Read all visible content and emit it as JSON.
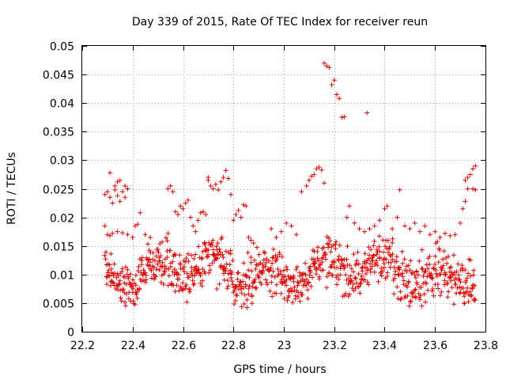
{
  "chart_data": {
    "type": "scatter",
    "title": "Day 339 of 2015, Rate Of TEC Index for receiver reun",
    "xlabel": "GPS time / hours",
    "ylabel": "ROTI / TECUs",
    "xlim": [
      22.2,
      23.8
    ],
    "ylim": [
      0,
      0.05
    ],
    "xticks": [
      "22.2",
      "22.4",
      "22.6",
      "22.8",
      "23",
      "23.2",
      "23.4",
      "23.6",
      "23.8"
    ],
    "yticks": [
      "0",
      "0.005",
      "0.01",
      "0.015",
      "0.02",
      "0.025",
      "0.03",
      "0.035",
      "0.04",
      "0.045",
      "0.05"
    ],
    "grid": true,
    "marker": "+",
    "color": "#e00000",
    "series": [
      {
        "name": "ROTI",
        "points": [
          [
            22.29,
            0.0185
          ],
          [
            22.29,
            0.024
          ],
          [
            22.3,
            0.0245
          ],
          [
            22.31,
            0.0235
          ],
          [
            22.31,
            0.0278
          ],
          [
            22.32,
            0.0225
          ],
          [
            22.33,
            0.0248
          ],
          [
            22.33,
            0.0255
          ],
          [
            22.34,
            0.0262
          ],
          [
            22.34,
            0.0238
          ],
          [
            22.35,
            0.0265
          ],
          [
            22.35,
            0.0228
          ],
          [
            22.36,
            0.0245
          ],
          [
            22.37,
            0.0255
          ],
          [
            22.37,
            0.0235
          ],
          [
            22.38,
            0.025
          ],
          [
            22.3,
            0.017
          ],
          [
            22.31,
            0.0168
          ],
          [
            22.32,
            0.0172
          ],
          [
            22.34,
            0.0175
          ],
          [
            22.36,
            0.0173
          ],
          [
            22.38,
            0.017
          ],
          [
            22.4,
            0.0165
          ],
          [
            22.41,
            0.0185
          ],
          [
            22.42,
            0.0188
          ],
          [
            22.43,
            0.0208
          ],
          [
            22.45,
            0.017
          ],
          [
            22.47,
            0.0165
          ],
          [
            22.54,
            0.025
          ],
          [
            22.55,
            0.0255
          ],
          [
            22.56,
            0.0245
          ],
          [
            22.57,
            0.021
          ],
          [
            22.58,
            0.0205
          ],
          [
            22.59,
            0.022
          ],
          [
            22.6,
            0.0215
          ],
          [
            22.61,
            0.0225
          ],
          [
            22.62,
            0.023
          ],
          [
            22.63,
            0.02
          ],
          [
            22.64,
            0.0185
          ],
          [
            22.65,
            0.0175
          ],
          [
            22.66,
            0.0195
          ],
          [
            22.67,
            0.0208
          ],
          [
            22.68,
            0.021
          ],
          [
            22.69,
            0.0205
          ],
          [
            22.7,
            0.0265
          ],
          [
            22.7,
            0.027
          ],
          [
            22.71,
            0.0255
          ],
          [
            22.72,
            0.025
          ],
          [
            22.73,
            0.0258
          ],
          [
            22.74,
            0.0248
          ],
          [
            22.75,
            0.0262
          ],
          [
            22.76,
            0.027
          ],
          [
            22.77,
            0.0282
          ],
          [
            22.78,
            0.0268
          ],
          [
            22.79,
            0.024
          ],
          [
            22.8,
            0.0195
          ],
          [
            22.81,
            0.0205
          ],
          [
            22.82,
            0.0212
          ],
          [
            22.83,
            0.02
          ],
          [
            22.84,
            0.0222
          ],
          [
            22.85,
            0.022
          ],
          [
            22.86,
            0.0165
          ],
          [
            22.87,
            0.016
          ],
          [
            22.88,
            0.0155
          ],
          [
            22.95,
            0.018
          ],
          [
            22.97,
            0.0165
          ],
          [
            22.99,
            0.0175
          ],
          [
            23.01,
            0.019
          ],
          [
            23.03,
            0.0185
          ],
          [
            23.05,
            0.017
          ],
          [
            23.07,
            0.0245
          ],
          [
            23.09,
            0.0255
          ],
          [
            23.1,
            0.0265
          ],
          [
            23.11,
            0.0272
          ],
          [
            23.12,
            0.0275
          ],
          [
            23.13,
            0.0285
          ],
          [
            23.14,
            0.0288
          ],
          [
            23.15,
            0.0283
          ],
          [
            23.16,
            0.026
          ],
          [
            23.16,
            0.047
          ],
          [
            23.17,
            0.0465
          ],
          [
            23.18,
            0.0462
          ],
          [
            23.19,
            0.0432
          ],
          [
            23.2,
            0.044
          ],
          [
            23.21,
            0.0415
          ],
          [
            23.22,
            0.0408
          ],
          [
            23.23,
            0.0375
          ],
          [
            23.24,
            0.0376
          ],
          [
            23.33,
            0.0383
          ],
          [
            23.25,
            0.02
          ],
          [
            23.26,
            0.022
          ],
          [
            23.28,
            0.019
          ],
          [
            23.3,
            0.018
          ],
          [
            23.32,
            0.0175
          ],
          [
            23.34,
            0.018
          ],
          [
            23.36,
            0.0185
          ],
          [
            23.38,
            0.0195
          ],
          [
            23.4,
            0.0215
          ],
          [
            23.41,
            0.022
          ],
          [
            23.43,
            0.018
          ],
          [
            23.45,
            0.02
          ],
          [
            23.46,
            0.0248
          ],
          [
            23.48,
            0.0185
          ],
          [
            23.5,
            0.018
          ],
          [
            23.52,
            0.019
          ],
          [
            23.54,
            0.0175
          ],
          [
            23.56,
            0.0185
          ],
          [
            23.58,
            0.017
          ],
          [
            23.6,
            0.0175
          ],
          [
            23.62,
            0.0165
          ],
          [
            23.64,
            0.0172
          ],
          [
            23.66,
            0.0168
          ],
          [
            23.68,
            0.017
          ],
          [
            23.7,
            0.019
          ],
          [
            23.71,
            0.0215
          ],
          [
            23.72,
            0.0228
          ],
          [
            23.72,
            0.0265
          ],
          [
            23.73,
            0.027
          ],
          [
            23.73,
            0.025
          ],
          [
            23.74,
            0.0275
          ],
          [
            23.75,
            0.0285
          ],
          [
            23.75,
            0.025
          ],
          [
            23.76,
            0.029
          ],
          [
            23.76,
            0.0248
          ]
        ],
        "band": {
          "x_start": 22.29,
          "x_end": 23.76,
          "count": 900,
          "y_low": 0.0045,
          "y_high": 0.0165
        }
      }
    ]
  }
}
